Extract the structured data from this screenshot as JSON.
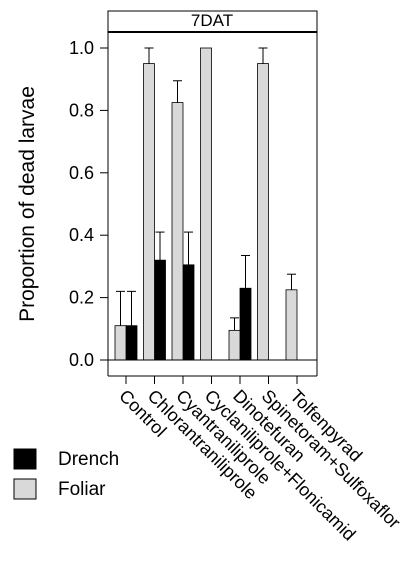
{
  "chart_data": {
    "type": "bar",
    "facet_label": "7DAT",
    "ylabel": "Proportion of dead larvae",
    "ylim": [
      0,
      1.0
    ],
    "yticks": [
      "0.0",
      "0.2",
      "0.4",
      "0.6",
      "0.8",
      "1.0"
    ],
    "categories": [
      "Control",
      "Chlorantraniliprole",
      "Cyantraniliprole",
      "Cyclaniliprole+Flonicamid",
      "Dinotefuran",
      "Spinetoram+Sulfoxaflor",
      "Tolfenpyrad"
    ],
    "series": [
      {
        "name": "Drench",
        "color": "#000000",
        "values": [
          0.11,
          0.32,
          0.305,
          0,
          0.23,
          0,
          0
        ],
        "errors": [
          0.11,
          0.09,
          0.105,
          0,
          0.105,
          0,
          0
        ]
      },
      {
        "name": "Foliar",
        "color": "#d9d9d9",
        "values": [
          0.11,
          0.95,
          0.825,
          1.0,
          0.095,
          0.95,
          0.225
        ],
        "errors": [
          0.11,
          0.05,
          0.07,
          0,
          0.04,
          0.05,
          0.05
        ]
      }
    ],
    "legend_position": "bottom-left"
  }
}
